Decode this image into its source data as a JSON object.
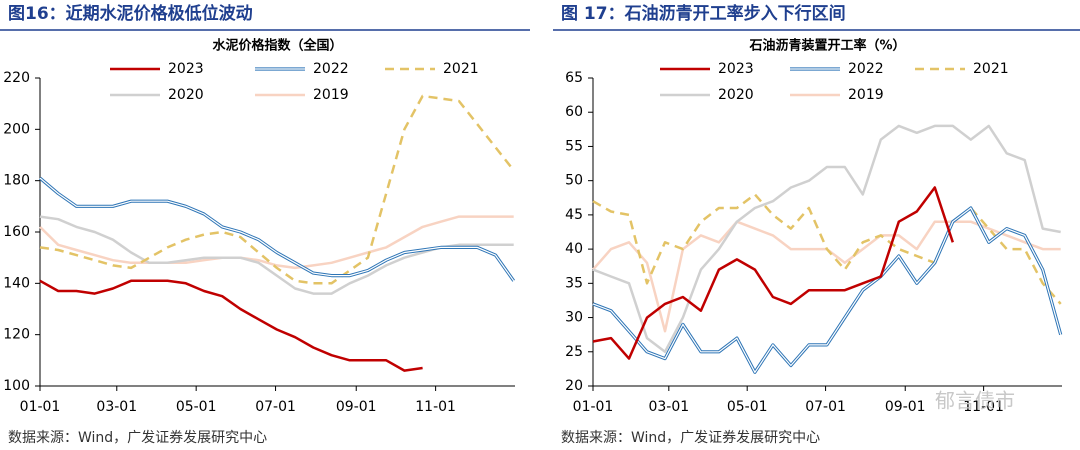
{
  "watermark": "郁言债市",
  "chart_data": [
    {
      "type": "line",
      "header": "图16：近期水泥价格极低位波动",
      "title": "水泥价格指数（全国）",
      "source": "数据来源：Wind，广发证券发展研究中心",
      "x": [
        0,
        14,
        28,
        42,
        56,
        70,
        84,
        98,
        112,
        126,
        140,
        154,
        168,
        182,
        196,
        210,
        224,
        238,
        252,
        266,
        280,
        294,
        308,
        322,
        336,
        350,
        364
      ],
      "xlim": [
        0,
        365
      ],
      "xticks": [
        {
          "value": 0,
          "label": "01-01"
        },
        {
          "value": 59,
          "label": "03-01"
        },
        {
          "value": 120,
          "label": "05-01"
        },
        {
          "value": 181,
          "label": "07-01"
        },
        {
          "value": 243,
          "label": "09-01"
        },
        {
          "value": 304,
          "label": "11-01"
        }
      ],
      "ylim": [
        100,
        220
      ],
      "yticks": [
        100,
        120,
        140,
        160,
        180,
        200,
        220
      ],
      "grid": false,
      "legend": "top",
      "series": [
        {
          "name": "2023",
          "color": "#c00000",
          "line_style": "solid",
          "values": [
            141,
            137,
            137,
            136,
            138,
            141,
            141,
            141,
            140,
            137,
            135,
            130,
            126,
            122,
            119,
            115,
            112,
            110,
            110,
            110,
            106,
            107,
            null,
            null,
            null,
            null,
            null
          ]
        },
        {
          "name": "2022",
          "color": "#2e75b6",
          "line_style": "double",
          "values": [
            181,
            175,
            170,
            170,
            170,
            172,
            172,
            172,
            170,
            167,
            162,
            160,
            157,
            152,
            148,
            144,
            143,
            143,
            145,
            149,
            152,
            153,
            154,
            154,
            154,
            151,
            141
          ]
        },
        {
          "name": "2021",
          "color": "#e3c366",
          "line_style": "dashed",
          "values": [
            154,
            153,
            151,
            149,
            147,
            146,
            150,
            154,
            157,
            159,
            160,
            158,
            152,
            146,
            141,
            140,
            140,
            145,
            150,
            175,
            200,
            213,
            212,
            211,
            202,
            193,
            184
          ]
        },
        {
          "name": "2020",
          "color": "#d0d0d0",
          "line_style": "solid",
          "values": [
            166,
            165,
            162,
            160,
            157,
            152,
            148,
            148,
            149,
            150,
            150,
            150,
            148,
            143,
            138,
            136,
            136,
            140,
            143,
            147,
            150,
            152,
            154,
            155,
            155,
            155,
            155
          ]
        },
        {
          "name": "2019",
          "color": "#f8d3c2",
          "line_style": "solid",
          "values": [
            162,
            155,
            153,
            151,
            149,
            148,
            148,
            148,
            148,
            149,
            150,
            150,
            149,
            147,
            146,
            147,
            148,
            150,
            152,
            154,
            158,
            162,
            164,
            166,
            166,
            166,
            166
          ]
        }
      ]
    },
    {
      "type": "line",
      "header": "图 17：石油沥青开工率步入下行区间",
      "title": "石油沥青装置开工率（%）",
      "source": "数据来源：Wind，广发证券发展研究中心",
      "x": [
        0,
        14,
        28,
        42,
        56,
        70,
        84,
        98,
        112,
        126,
        140,
        154,
        168,
        182,
        196,
        210,
        224,
        238,
        252,
        266,
        280,
        294,
        308,
        322,
        336,
        350,
        364
      ],
      "xlim": [
        0,
        365
      ],
      "xticks": [
        {
          "value": 0,
          "label": "01-01"
        },
        {
          "value": 59,
          "label": "03-01"
        },
        {
          "value": 120,
          "label": "05-01"
        },
        {
          "value": 181,
          "label": "07-01"
        },
        {
          "value": 243,
          "label": "09-01"
        },
        {
          "value": 304,
          "label": "11-01"
        }
      ],
      "ylim": [
        20,
        65
      ],
      "yticks": [
        20,
        25,
        30,
        35,
        40,
        45,
        50,
        55,
        60,
        65
      ],
      "grid": false,
      "legend": "top",
      "series": [
        {
          "name": "2023",
          "color": "#c00000",
          "line_style": "solid",
          "values": [
            26.5,
            27,
            24,
            30,
            32,
            33,
            31,
            37,
            38.5,
            37,
            33,
            32,
            34,
            34,
            34,
            35,
            36,
            44,
            45.5,
            49,
            41,
            null,
            null,
            null,
            null,
            null,
            null
          ]
        },
        {
          "name": "2022",
          "color": "#2e75b6",
          "line_style": "double",
          "values": [
            32,
            31,
            28,
            25,
            24,
            29,
            25,
            25,
            27,
            22,
            26,
            23,
            26,
            26,
            30,
            34,
            36,
            39,
            35,
            38,
            44,
            46,
            41,
            43,
            42,
            37,
            27.5
          ]
        },
        {
          "name": "2021",
          "color": "#e3c366",
          "line_style": "dashed",
          "values": [
            47,
            45.5,
            45,
            35,
            41,
            40,
            44,
            46,
            46,
            48,
            45,
            43,
            46,
            40,
            37,
            41,
            42,
            40,
            39,
            38,
            44,
            46,
            43,
            40,
            40,
            35,
            32
          ]
        },
        {
          "name": "2020",
          "color": "#d0d0d0",
          "line_style": "solid",
          "values": [
            37,
            36,
            35,
            27,
            25,
            30,
            37,
            40,
            44,
            46,
            47,
            49,
            50,
            52,
            52,
            48,
            56,
            58,
            57,
            58,
            58,
            56,
            58,
            54,
            53,
            43,
            42.5
          ]
        },
        {
          "name": "2019",
          "color": "#f8d3c2",
          "line_style": "solid",
          "values": [
            37,
            40,
            41,
            38,
            28,
            40,
            42,
            41,
            44,
            43,
            42,
            40,
            40,
            40,
            38,
            40,
            42,
            42,
            40,
            44,
            44,
            44,
            43,
            42,
            41,
            40,
            40
          ]
        }
      ]
    }
  ]
}
